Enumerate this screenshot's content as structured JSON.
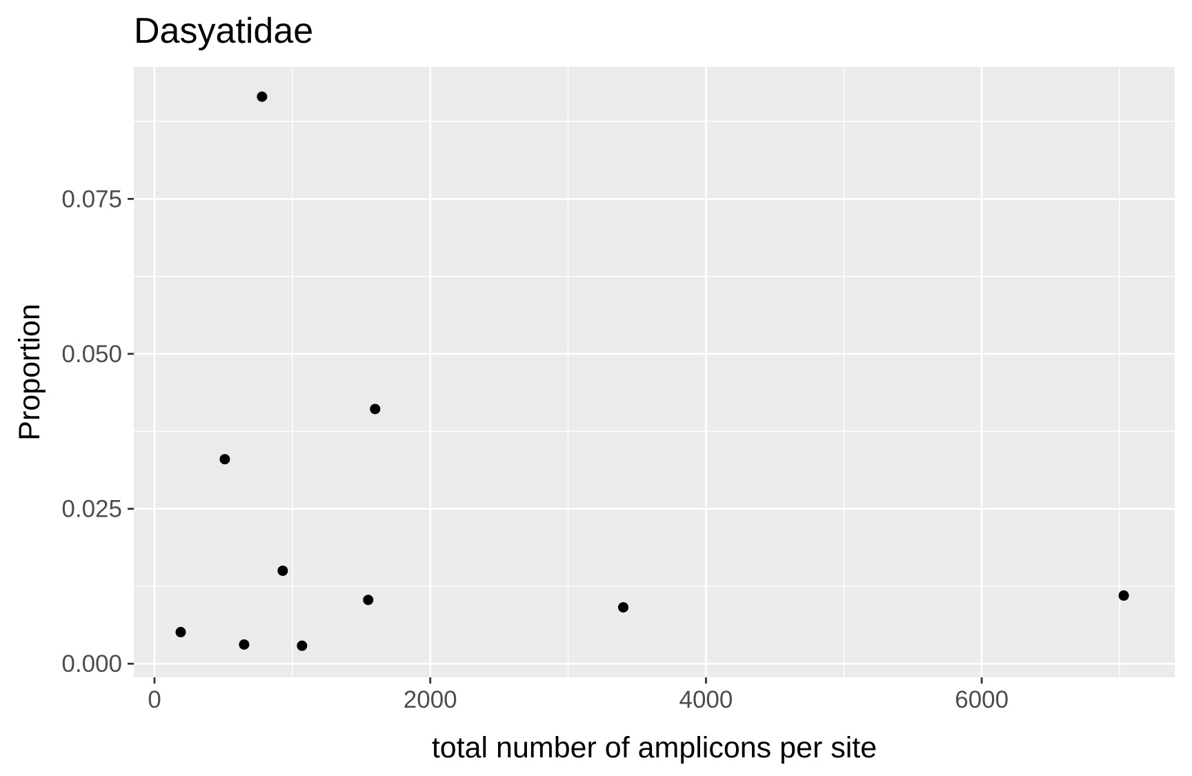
{
  "chart_data": {
    "type": "scatter",
    "title": "Dasyatidae",
    "xlabel": "total number of amplicons per site",
    "ylabel": "Proportion",
    "xlim": [
      -150,
      7400
    ],
    "ylim": [
      -0.0022,
      0.0963
    ],
    "x_ticks": [
      0,
      2000,
      4000,
      6000
    ],
    "x_tick_labels": [
      "0",
      "2000",
      "4000",
      "6000"
    ],
    "y_ticks": [
      0.0,
      0.025,
      0.05,
      0.075
    ],
    "y_tick_labels": [
      "0.000",
      "0.025",
      "0.050",
      "0.075"
    ],
    "grid": true,
    "legend": "none",
    "colors": {
      "panel": "#EBEBEB",
      "grid": "#FFFFFF",
      "point": "#000000",
      "tick_label": "#4D4D4D"
    },
    "points": [
      {
        "x": 780,
        "y": 0.0915
      },
      {
        "x": 1600,
        "y": 0.0411
      },
      {
        "x": 510,
        "y": 0.033
      },
      {
        "x": 930,
        "y": 0.015
      },
      {
        "x": 1550,
        "y": 0.0103
      },
      {
        "x": 3400,
        "y": 0.0091
      },
      {
        "x": 7030,
        "y": 0.011
      },
      {
        "x": 190,
        "y": 0.0051
      },
      {
        "x": 650,
        "y": 0.0031
      },
      {
        "x": 1070,
        "y": 0.0029
      }
    ]
  }
}
